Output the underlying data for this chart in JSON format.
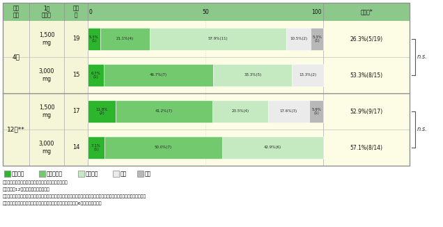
{
  "rows": [
    {
      "period": "4週",
      "dose": "1,500\nmg",
      "n": 19,
      "values": [
        5.3,
        21.1,
        57.9,
        10.5,
        5.3
      ],
      "bar_labels": [
        "5.3%\n(1)",
        "21.1%(4)",
        "57.9%(11)",
        "10.5%(2)",
        "5.3%\n(1)"
      ],
      "kaizen": "26.3%(5/19)"
    },
    {
      "period": "",
      "dose": "3,000\nmg",
      "n": 15,
      "values": [
        6.7,
        46.7,
        33.3,
        13.3,
        0.0
      ],
      "bar_labels": [
        "6.7%\n(1)",
        "46.7%(7)",
        "33.3%(5)",
        "13.3%(2)",
        ""
      ],
      "kaizen": "53.3%(8/15)"
    },
    {
      "period": "12週**",
      "dose": "1,500\nmg",
      "n": 17,
      "values": [
        11.8,
        41.2,
        23.5,
        17.6,
        5.9
      ],
      "bar_labels": [
        "11.8%\n(2)",
        "41.2%(7)",
        "23.5%(4)",
        "17.6%(3)",
        "5.9%\n(1)"
      ],
      "kaizen": "52.9%(9/17)"
    },
    {
      "period": "",
      "dose": "3,000\nmg",
      "n": 14,
      "values": [
        7.1,
        50.0,
        42.9,
        0.0,
        0.0
      ],
      "bar_labels": [
        "7.1%\n(1)",
        "50.0%(7)",
        "42.9%(6)",
        "",
        ""
      ],
      "kaizen": "57.1%(8/14)"
    }
  ],
  "bar_colors": [
    "#2db52d",
    "#72c96e",
    "#c5eac2",
    "#ebebeb",
    "#b8b8b8"
  ],
  "header_color": "#8cc88a",
  "col_left_bg": "#f5f5d8",
  "row_bg": "#fdfde5",
  "legend_labels": [
    "著明改善",
    "中等度改善",
    "軽度改善",
    "不変",
    "悪化"
  ],
  "footnote1": "＊改善率：著明改善及び中等度改善を加えた症例の比率",
  "footnote2": "＊＊投与後12週間あるいは投与終了時",
  "footnote3": "評価基準：患者の生活の印象、臨床症状改善度、臨床検査成績改善度、臨床的活動度改善度及び形態学的改善度を総合し、",
  "footnote4": "　　著明改善、中等度改善、軽度改善、不変、悪化、判定不能の6段階で評価した。"
}
